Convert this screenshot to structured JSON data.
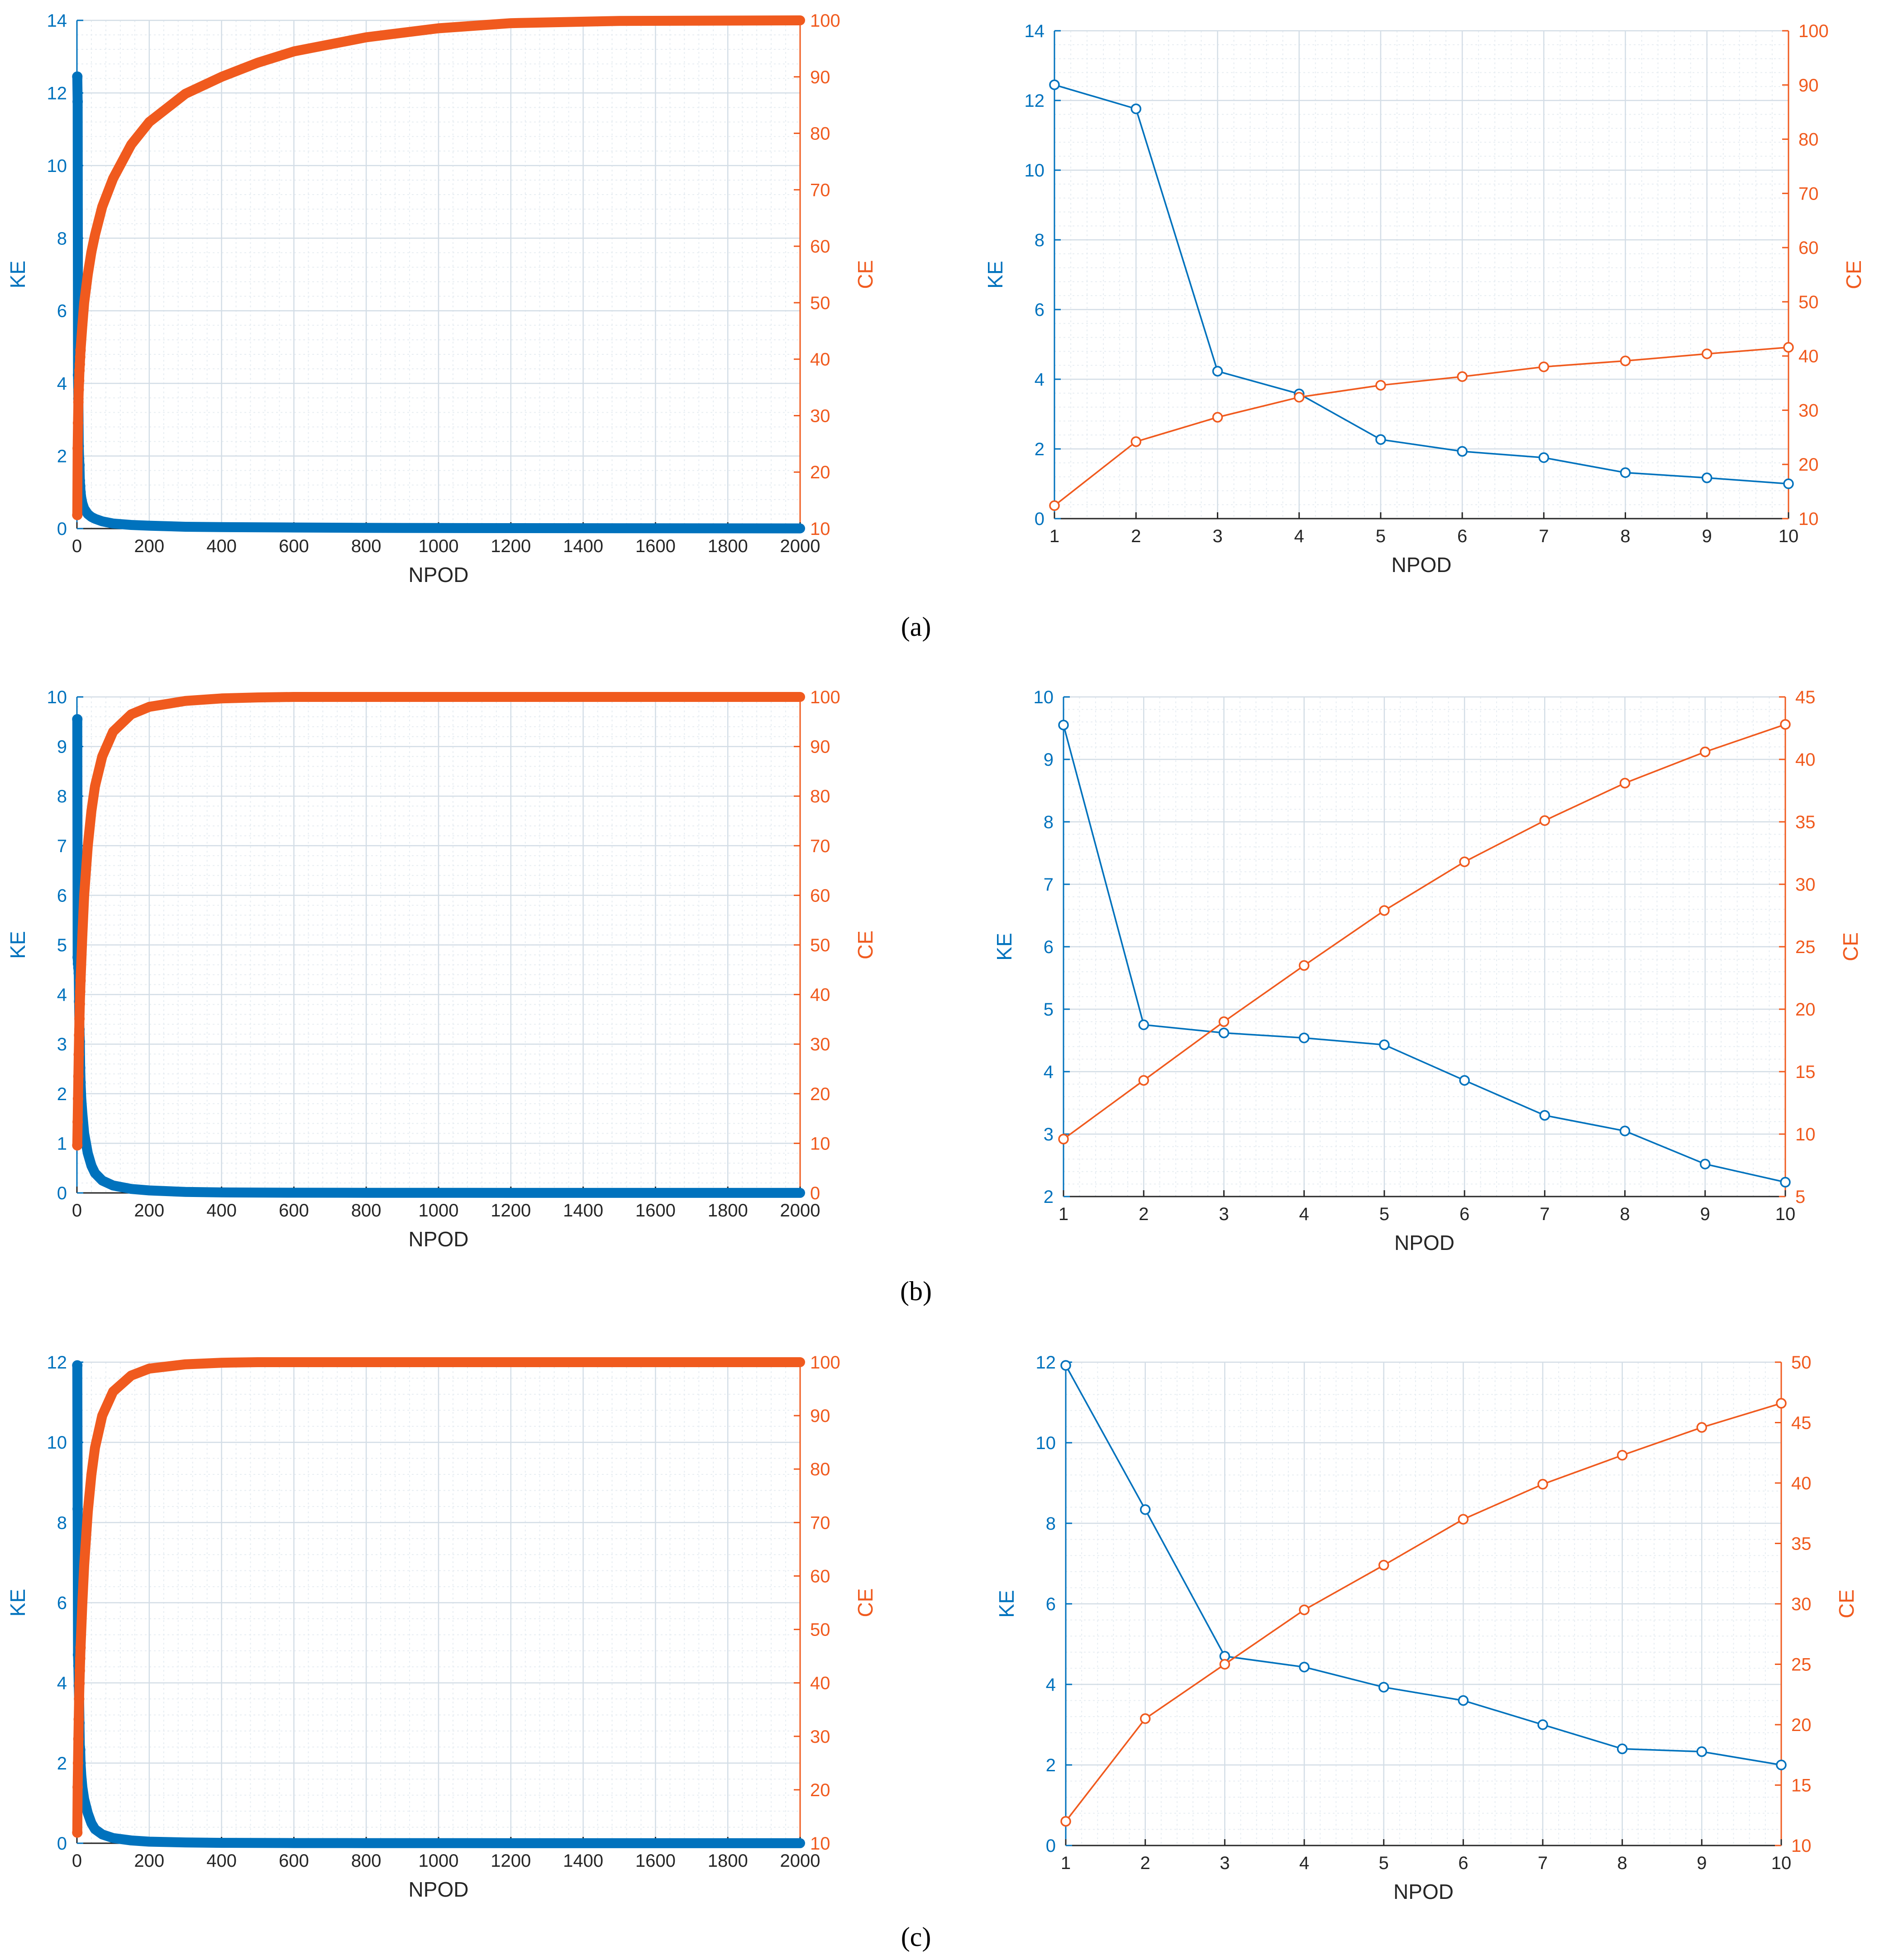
{
  "captions": [
    "(a)",
    "(b)",
    "(c)"
  ],
  "colors": {
    "ke": "#0072BD",
    "ce": "#F05A1E",
    "grid": "#d3dde6",
    "axis": "#262626"
  },
  "chart_data": [
    {
      "type": "line",
      "panel": "a-left",
      "title": "",
      "xlabel": "NPOD",
      "ylabel_left": "KE",
      "ylabel_right": "CE",
      "xlim": [
        0,
        2000
      ],
      "ylim_left": [
        0,
        14
      ],
      "ylim_right": [
        10,
        100
      ],
      "xticks": [
        "0",
        "200",
        "400",
        "600",
        "800",
        "1000",
        "1200",
        "1400",
        "1600",
        "1800",
        "2000"
      ],
      "yticks_left": [
        "0",
        "2",
        "4",
        "6",
        "8",
        "10",
        "12",
        "14"
      ],
      "yticks_right": [
        "10",
        "20",
        "30",
        "40",
        "50",
        "60",
        "70",
        "80",
        "90",
        "100"
      ],
      "grid": true,
      "markers": "circle",
      "dense": true,
      "series": [
        {
          "name": "KE",
          "axis": "left",
          "x": [
            1,
            2,
            3,
            4,
            5,
            6,
            7,
            8,
            9,
            10,
            12,
            15,
            20,
            30,
            40,
            50,
            70,
            100,
            150,
            200,
            300,
            400,
            600,
            800,
            1000,
            1500,
            2000
          ],
          "y": [
            12.45,
            11.76,
            4.23,
            3.58,
            2.27,
            1.93,
            1.75,
            1.32,
            1.17,
            1.0,
            0.85,
            0.7,
            0.55,
            0.4,
            0.32,
            0.27,
            0.2,
            0.14,
            0.1,
            0.08,
            0.05,
            0.04,
            0.03,
            0.02,
            0.015,
            0.01,
            0.005
          ]
        },
        {
          "name": "CE",
          "axis": "right",
          "x": [
            1,
            2,
            3,
            4,
            5,
            6,
            7,
            8,
            9,
            10,
            15,
            20,
            30,
            40,
            50,
            70,
            100,
            150,
            200,
            300,
            400,
            500,
            600,
            800,
            1000,
            1200,
            1500,
            2000
          ],
          "y": [
            12.4,
            24.2,
            28.7,
            32.4,
            34.6,
            36.2,
            38.0,
            39.1,
            40.4,
            41.6,
            46,
            50,
            55,
            59,
            62,
            67,
            72,
            78,
            82,
            87,
            90,
            92.5,
            94.5,
            97,
            98.6,
            99.5,
            99.9,
            100
          ]
        }
      ]
    },
    {
      "type": "line",
      "panel": "a-right",
      "title": "",
      "xlabel": "NPOD",
      "ylabel_left": "KE",
      "ylabel_right": "CE",
      "xlim": [
        1,
        10
      ],
      "ylim_left": [
        0,
        14
      ],
      "ylim_right": [
        10,
        100
      ],
      "xticks": [
        "1",
        "2",
        "3",
        "4",
        "5",
        "6",
        "7",
        "8",
        "9",
        "10"
      ],
      "yticks_left": [
        "0",
        "2",
        "4",
        "6",
        "8",
        "10",
        "12",
        "14"
      ],
      "yticks_right": [
        "10",
        "20",
        "30",
        "40",
        "50",
        "60",
        "70",
        "80",
        "90",
        "100"
      ],
      "grid": true,
      "markers": "circle",
      "dense": false,
      "series": [
        {
          "name": "KE",
          "axis": "left",
          "x": [
            1,
            2,
            3,
            4,
            5,
            6,
            7,
            8,
            9,
            10
          ],
          "y": [
            12.45,
            11.76,
            4.23,
            3.58,
            2.27,
            1.93,
            1.75,
            1.32,
            1.17,
            1.0
          ]
        },
        {
          "name": "CE",
          "axis": "right",
          "x": [
            1,
            2,
            3,
            4,
            5,
            6,
            7,
            8,
            9,
            10
          ],
          "y": [
            12.4,
            24.2,
            28.7,
            32.4,
            34.6,
            36.2,
            38.0,
            39.1,
            40.4,
            41.6
          ]
        }
      ]
    },
    {
      "type": "line",
      "panel": "b-left",
      "title": "",
      "xlabel": "NPOD",
      "ylabel_left": "KE",
      "ylabel_right": "CE",
      "xlim": [
        0,
        2000
      ],
      "ylim_left": [
        0,
        10
      ],
      "ylim_right": [
        0,
        100
      ],
      "xticks": [
        "0",
        "200",
        "400",
        "600",
        "800",
        "1000",
        "1200",
        "1400",
        "1600",
        "1800",
        "2000"
      ],
      "yticks_left": [
        "0",
        "1",
        "2",
        "3",
        "4",
        "5",
        "6",
        "7",
        "8",
        "9",
        "10"
      ],
      "yticks_right": [
        "0",
        "10",
        "20",
        "30",
        "40",
        "50",
        "60",
        "70",
        "80",
        "90",
        "100"
      ],
      "grid": true,
      "markers": "circle",
      "dense": true,
      "series": [
        {
          "name": "KE",
          "axis": "left",
          "x": [
            1,
            2,
            3,
            4,
            5,
            6,
            7,
            8,
            9,
            10,
            12,
            15,
            20,
            30,
            40,
            50,
            70,
            100,
            150,
            200,
            300,
            400,
            600,
            800,
            1000,
            1500,
            2000
          ],
          "y": [
            9.55,
            4.75,
            4.62,
            4.54,
            4.43,
            3.86,
            3.3,
            3.05,
            2.52,
            2.23,
            1.9,
            1.6,
            1.2,
            0.8,
            0.55,
            0.4,
            0.25,
            0.15,
            0.08,
            0.05,
            0.02,
            0.01,
            0.005,
            0.003,
            0.002,
            0.001,
            0.001
          ]
        },
        {
          "name": "CE",
          "axis": "right",
          "x": [
            1,
            2,
            3,
            4,
            5,
            6,
            7,
            8,
            9,
            10,
            15,
            20,
            30,
            40,
            50,
            70,
            100,
            150,
            200,
            300,
            400,
            500,
            600,
            800,
            1000,
            1500,
            2000
          ],
          "y": [
            9.6,
            14.3,
            19.0,
            23.5,
            27.9,
            31.8,
            35.1,
            38.1,
            40.6,
            42.8,
            52,
            60,
            70,
            77,
            82,
            88,
            93,
            96.5,
            98,
            99.2,
            99.7,
            99.9,
            100,
            100,
            100,
            100,
            100
          ]
        }
      ]
    },
    {
      "type": "line",
      "panel": "b-right",
      "title": "",
      "xlabel": "NPOD",
      "ylabel_left": "KE",
      "ylabel_right": "CE",
      "xlim": [
        1,
        10
      ],
      "ylim_left": [
        2,
        10
      ],
      "ylim_right": [
        5,
        45
      ],
      "xticks": [
        "1",
        "2",
        "3",
        "4",
        "5",
        "6",
        "7",
        "8",
        "9",
        "10"
      ],
      "yticks_left": [
        "2",
        "3",
        "4",
        "5",
        "6",
        "7",
        "8",
        "9",
        "10"
      ],
      "yticks_right": [
        "5",
        "10",
        "15",
        "20",
        "25",
        "30",
        "35",
        "40",
        "45"
      ],
      "grid": true,
      "markers": "circle",
      "dense": false,
      "series": [
        {
          "name": "KE",
          "axis": "left",
          "x": [
            1,
            2,
            3,
            4,
            5,
            6,
            7,
            8,
            9,
            10
          ],
          "y": [
            9.55,
            4.75,
            4.62,
            4.54,
            4.43,
            3.86,
            3.3,
            3.05,
            2.52,
            2.23
          ]
        },
        {
          "name": "CE",
          "axis": "right",
          "x": [
            1,
            2,
            3,
            4,
            5,
            6,
            7,
            8,
            9,
            10
          ],
          "y": [
            9.6,
            14.3,
            19.0,
            23.5,
            27.9,
            31.8,
            35.1,
            38.1,
            40.6,
            42.8
          ]
        }
      ]
    },
    {
      "type": "line",
      "panel": "c-left",
      "title": "",
      "xlabel": "NPOD",
      "ylabel_left": "KE",
      "ylabel_right": "CE",
      "xlim": [
        0,
        2000
      ],
      "ylim_left": [
        0,
        12
      ],
      "ylim_right": [
        10,
        100
      ],
      "xticks": [
        "0",
        "200",
        "400",
        "600",
        "800",
        "1000",
        "1200",
        "1400",
        "1600",
        "1800",
        "2000"
      ],
      "yticks_left": [
        "0",
        "2",
        "4",
        "6",
        "8",
        "10",
        "12"
      ],
      "yticks_right": [
        "10",
        "20",
        "30",
        "40",
        "50",
        "60",
        "70",
        "80",
        "90",
        "100"
      ],
      "grid": true,
      "markers": "circle",
      "dense": true,
      "series": [
        {
          "name": "KE",
          "axis": "left",
          "x": [
            1,
            2,
            3,
            4,
            5,
            6,
            7,
            8,
            9,
            10,
            12,
            15,
            20,
            30,
            40,
            50,
            70,
            100,
            150,
            200,
            300,
            400,
            600,
            800,
            1000,
            1500,
            2000
          ],
          "y": [
            11.92,
            8.34,
            4.7,
            4.43,
            3.93,
            3.6,
            3.0,
            2.4,
            2.33,
            2.0,
            1.7,
            1.4,
            1.1,
            0.75,
            0.5,
            0.35,
            0.22,
            0.13,
            0.07,
            0.04,
            0.02,
            0.01,
            0.005,
            0.003,
            0.002,
            0.001,
            0.001
          ]
        },
        {
          "name": "CE",
          "axis": "right",
          "x": [
            1,
            2,
            3,
            4,
            5,
            6,
            7,
            8,
            9,
            10,
            15,
            20,
            30,
            40,
            50,
            70,
            100,
            150,
            200,
            300,
            400,
            500,
            600,
            800,
            1000,
            1500,
            2000
          ],
          "y": [
            12.0,
            20.5,
            25.0,
            29.5,
            33.2,
            37.0,
            39.9,
            42.3,
            44.6,
            46.6,
            55,
            62,
            72,
            79,
            84,
            90,
            94.5,
            97.5,
            98.8,
            99.6,
            99.9,
            100,
            100,
            100,
            100,
            100,
            100
          ]
        }
      ]
    },
    {
      "type": "line",
      "panel": "c-right",
      "title": "",
      "xlabel": "NPOD",
      "ylabel_left": "KE",
      "ylabel_right": "CE",
      "xlim": [
        1,
        10
      ],
      "ylim_left": [
        0,
        12
      ],
      "ylim_right": [
        10,
        50
      ],
      "xticks": [
        "1",
        "2",
        "3",
        "4",
        "5",
        "6",
        "7",
        "8",
        "9",
        "10"
      ],
      "yticks_left": [
        "0",
        "2",
        "4",
        "6",
        "8",
        "10",
        "12"
      ],
      "yticks_right": [
        "10",
        "15",
        "20",
        "25",
        "30",
        "35",
        "40",
        "45",
        "50"
      ],
      "grid": true,
      "markers": "circle",
      "dense": false,
      "series": [
        {
          "name": "KE",
          "axis": "left",
          "x": [
            1,
            2,
            3,
            4,
            5,
            6,
            7,
            8,
            9,
            10
          ],
          "y": [
            11.92,
            8.34,
            4.7,
            4.43,
            3.93,
            3.6,
            3.0,
            2.4,
            2.33,
            2.0
          ]
        },
        {
          "name": "CE",
          "axis": "right",
          "x": [
            1,
            2,
            3,
            4,
            5,
            6,
            7,
            8,
            9,
            10
          ],
          "y": [
            12.0,
            20.5,
            25.0,
            29.5,
            33.2,
            37.0,
            39.9,
            42.3,
            44.6,
            46.6
          ]
        }
      ]
    }
  ]
}
